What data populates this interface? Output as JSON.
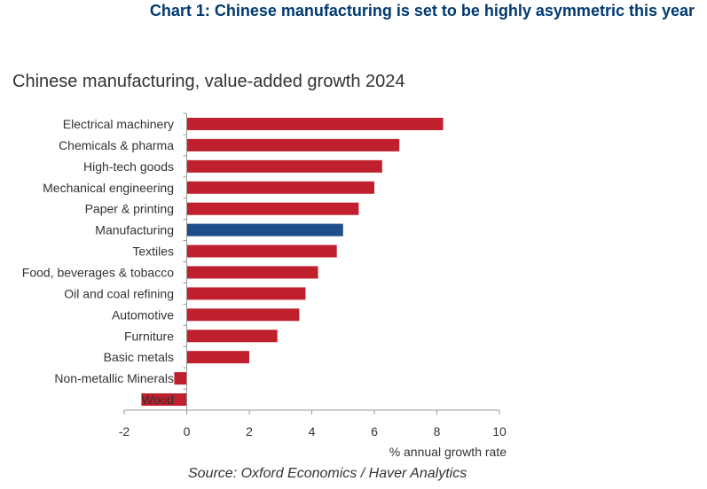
{
  "heading": "Chart 1: Chinese manufacturing is set to be highly asymmetric this year",
  "colors": {
    "bar": "#c0202e",
    "highlight": "#1f4e8c",
    "heading": "#003a70",
    "axis": "#999999",
    "text": "#333333"
  },
  "chart_data": {
    "type": "bar",
    "orientation": "horizontal",
    "title": "Chinese manufacturing, value-added growth 2024",
    "xlabel": "% annual growth rate",
    "ylabel": "",
    "xlim": [
      -2,
      10
    ],
    "xticks": [
      -2,
      0,
      2,
      4,
      6,
      8,
      10
    ],
    "grid": false,
    "categories": [
      "Electrical machinery",
      "Chemicals & pharma",
      "High-tech goods",
      "Mechanical engineering",
      "Paper & printing",
      "Manufacturing",
      "Textiles",
      "Food, beverages & tobacco",
      "Oil and coal refining",
      "Automotive",
      "Furniture",
      "Basic metals",
      "Non-metallic Minerals",
      "Wood"
    ],
    "values": [
      8.2,
      6.8,
      6.25,
      6.0,
      5.5,
      5.0,
      4.8,
      4.2,
      3.8,
      3.6,
      2.9,
      2.0,
      -0.4,
      -1.45
    ],
    "highlight_category": "Manufacturing"
  },
  "source": "Source: Oxford Economics / Haver Analytics"
}
